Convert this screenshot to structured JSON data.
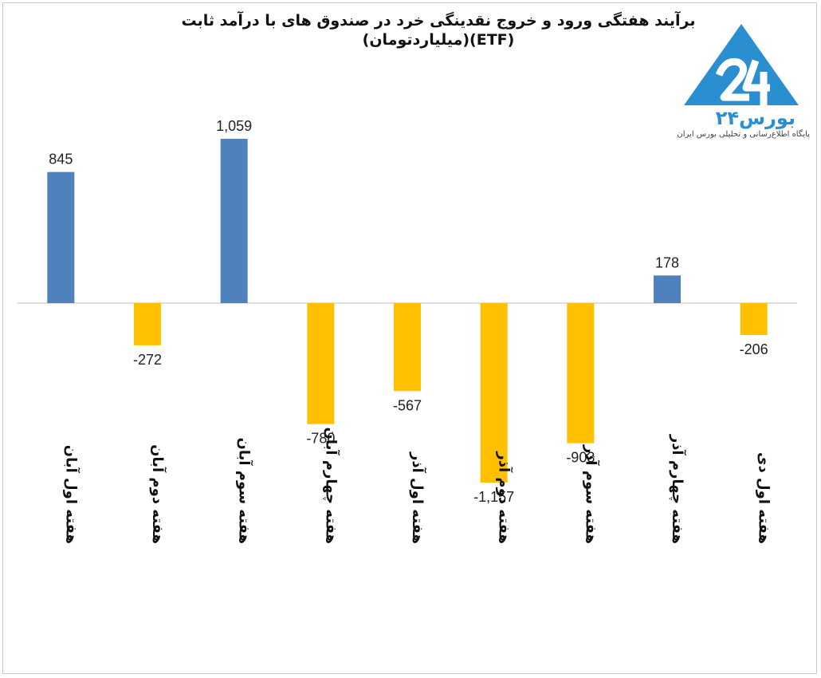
{
  "chart": {
    "title_line1": "برآیند هفتگی ورود و خروج نقدینگی خرد در صندوق های با درآمد ثابت",
    "title_line2": "(ETF)(میلیاردتومان)"
  },
  "logo": {
    "name": "بورس۲۴",
    "tagline": "پایگاه اطلاع‌رسانی و تحلیلی بورس ایران"
  },
  "colors": {
    "positive": "#4f81bd",
    "negative": "#ffc000",
    "axis": "#bfbfbf",
    "logo": "#2a8fd0"
  },
  "chart_data": {
    "type": "bar",
    "title": "برآیند هفتگی ورود و خروج نقدینگی خرد در صندوق های با درآمد ثابت (ETF)(میلیاردتومان)",
    "categories": [
      "هفته اول آبان",
      "هفته دوم آبان",
      "هفته سوم آبان",
      "هفته چهارم آبان",
      "هفته اول آذر",
      "هفته دوم آذر",
      "هفته سوم آذر",
      "هفته چهارم آذر",
      "هفته اول دی"
    ],
    "values": [
      845,
      -272,
      1059,
      -780,
      -567,
      -1157,
      -903,
      178,
      -206
    ],
    "data_labels": [
      "845",
      "-272",
      "1,059",
      "-780",
      "-567",
      "-1,157",
      "-903",
      "178",
      "-206"
    ],
    "xlabel": "",
    "ylabel": "",
    "ylim": [
      -1157,
      1059
    ],
    "grid": false,
    "legend": "none"
  }
}
